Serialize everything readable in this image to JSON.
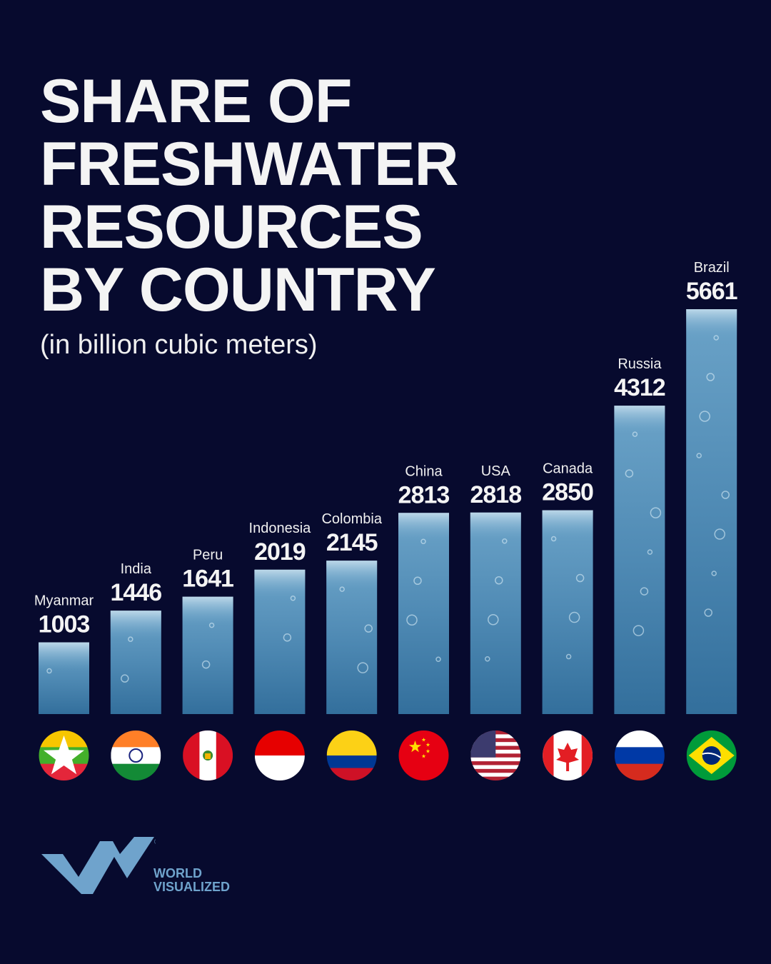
{
  "chart_data": {
    "type": "bar",
    "title": "SHARE OF FRESHWATER RESOURCES BY COUNTRY",
    "title_lines": [
      "SHARE OF",
      "FRESHWATER",
      "RESOURCES",
      "BY COUNTRY"
    ],
    "subtitle": "(in billion cubic meters)",
    "categories": [
      "Myanmar",
      "India",
      "Peru",
      "Indonesia",
      "Colombia",
      "China",
      "USA",
      "Canada",
      "Russia",
      "Brazil"
    ],
    "values": [
      1003,
      1446,
      1641,
      2019,
      2145,
      2813,
      2818,
      2850,
      4312,
      5661
    ],
    "value_labels": [
      "1003",
      "1446",
      "1641",
      "2019",
      "2145",
      "2813",
      "2818",
      "2850",
      "4312",
      "5661"
    ],
    "ylim": [
      0,
      5661
    ],
    "grid": false,
    "bar_style": "water texture",
    "colors": {
      "background": "#070a2e",
      "bar_top": "#5d94bb",
      "bar_bottom": "#2f6f9e",
      "text": "#f4f4f4",
      "brand": "#6fa3cc"
    },
    "flags": [
      "myanmar-flag",
      "india-flag",
      "peru-flag",
      "indonesia-flag",
      "colombia-flag",
      "china-flag",
      "usa-flag",
      "canada-flag",
      "russia-flag",
      "brazil-flag"
    ]
  },
  "brand": {
    "line1": "WORLD",
    "line2": "VISUALIZED",
    "logo": "WV"
  }
}
